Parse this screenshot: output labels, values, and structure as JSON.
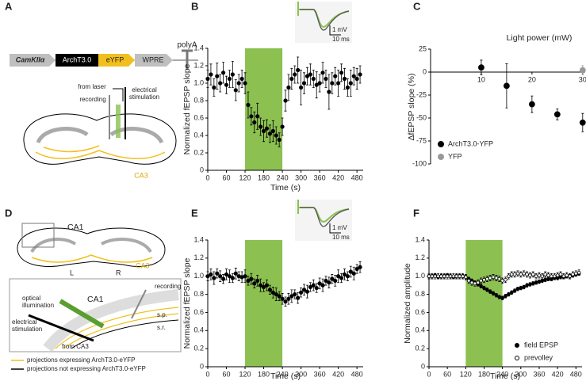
{
  "panel_labels": [
    "A",
    "B",
    "C",
    "D",
    "E",
    "F"
  ],
  "diagram_a": {
    "promoter": "CamKIIα",
    "gene": "ArchT3.0",
    "reporter": "eYFP",
    "element": "WPRE",
    "terminator": "polyA",
    "labels": [
      "from laser",
      "recording",
      "electrical",
      "stimulation",
      "CA3"
    ]
  },
  "diagram_d": {
    "slice_labels": [
      "CA1",
      "L",
      "R",
      "CA3"
    ],
    "inset_labels": [
      "optical",
      "illumination",
      "CA1",
      "recording",
      "s.p.",
      "s.r.",
      "electrical",
      "stimulation",
      "from CA3"
    ],
    "legend": [
      "projections expressing ArchT3.0-eYFP",
      "projections not expressing ArchT3.0-eYFP"
    ]
  },
  "chart_data": [
    {
      "type": "scatter",
      "xlabel": "Time (s)",
      "ylabel": "Normalized fEPSP slope",
      "x": [
        0,
        10,
        20,
        30,
        40,
        50,
        60,
        70,
        80,
        90,
        100,
        110,
        120,
        130,
        140,
        150,
        160,
        170,
        180,
        190,
        200,
        210,
        220,
        230,
        240,
        250,
        260,
        270,
        280,
        290,
        300,
        310,
        320,
        330,
        340,
        350,
        360,
        370,
        380,
        390,
        400,
        410,
        420,
        430,
        440,
        450,
        460,
        470,
        480,
        490
      ],
      "series": [
        {
          "color": "#000000",
          "values": [
            1.05,
            1.1,
            0.95,
            1.08,
            1.0,
            1.12,
            0.98,
            1.05,
            1.1,
            0.92,
            1.0,
            1.05,
            1.0,
            0.75,
            0.62,
            0.55,
            0.62,
            0.5,
            0.45,
            0.48,
            0.42,
            0.45,
            0.4,
            0.35,
            0.5,
            0.8,
            0.95,
            1.05,
            1.1,
            1.15,
            0.95,
            1.0,
            1.08,
            1.1,
            1.05,
            0.98,
            1.0,
            1.12,
            1.05,
            0.9,
            1.0,
            1.08,
            1.0,
            1.12,
            1.05,
            0.95,
            1.0,
            1.08,
            1.05,
            1.1
          ],
          "errors": [
            0.1,
            0.12,
            0.1,
            0.15,
            0.1,
            0.12,
            0.1,
            0.1,
            0.15,
            0.12,
            0.1,
            0.1,
            0.12,
            0.15,
            0.1,
            0.12,
            0.15,
            0.1,
            0.12,
            0.1,
            0.1,
            0.12,
            0.1,
            0.08,
            0.1,
            0.12,
            0.15,
            0.12,
            0.1,
            0.15,
            0.2,
            0.12,
            0.1,
            0.12,
            0.1,
            0.15,
            0.1,
            0.12,
            0.1,
            0.2,
            0.12,
            0.1,
            0.15,
            0.1,
            0.12,
            0.1,
            0.15,
            0.1,
            0.12,
            0.1
          ]
        }
      ],
      "xlim": [
        0,
        500
      ],
      "xticks": [
        0,
        60,
        120,
        180,
        240,
        300,
        360,
        420,
        480
      ],
      "ylim": [
        0,
        1.4
      ],
      "yticks": [
        0,
        0.2,
        0.4,
        0.6,
        0.8,
        {
          "value": 1,
          "label": "1.0"
        },
        1.2,
        1.4
      ],
      "highlight": [
        120,
        240
      ],
      "highlight_color": "#8cc152",
      "scale_labels": [
        "1 mV",
        "10 ms"
      ]
    },
    {
      "type": "scatter",
      "xlabel": "Light power (mW)",
      "ylabel": "ΔfEPSP slope (%)",
      "series": [
        {
          "name": "ArchT3.0-YFP",
          "color": "#000000",
          "x": [
            10,
            15,
            20,
            25,
            30
          ],
          "values": [
            5,
            -15,
            -35,
            -46,
            -55
          ],
          "errors": [
            8,
            24,
            9,
            6,
            10
          ]
        },
        {
          "name": "YFP",
          "color": "#999999",
          "x": [
            30
          ],
          "values": [
            2
          ],
          "errors": [
            5
          ]
        }
      ],
      "xlim": [
        0,
        30.5
      ],
      "xticks": [
        10,
        20,
        30
      ],
      "ylim": [
        -100,
        25
      ],
      "yticks": [
        25,
        0,
        -25,
        -50,
        -75,
        -100
      ],
      "legend": "lower left"
    },
    {
      "type": "scatter",
      "xlabel": "Time (s)",
      "ylabel": "Normalized fEPSP slope",
      "x": [
        0,
        10,
        20,
        30,
        40,
        50,
        60,
        70,
        80,
        90,
        100,
        110,
        120,
        130,
        140,
        150,
        160,
        170,
        180,
        190,
        200,
        210,
        220,
        230,
        240,
        250,
        260,
        270,
        280,
        290,
        300,
        310,
        320,
        330,
        340,
        350,
        360,
        370,
        380,
        390,
        400,
        410,
        420,
        430,
        440,
        450,
        460,
        470,
        480,
        490
      ],
      "series": [
        {
          "color": "#000000",
          "values": [
            1.0,
            1.02,
            0.98,
            1.03,
            1.0,
            0.97,
            1.02,
            1.0,
            0.98,
            1.03,
            1.0,
            0.99,
            1.0,
            0.95,
            0.97,
            0.92,
            0.95,
            0.9,
            0.88,
            0.9,
            0.85,
            0.82,
            0.8,
            0.78,
            0.75,
            0.72,
            0.75,
            0.78,
            0.8,
            0.76,
            0.82,
            0.85,
            0.83,
            0.88,
            0.9,
            0.87,
            0.92,
            0.9,
            0.95,
            0.93,
            0.97,
            0.95,
            1.0,
            0.98,
            1.02,
            1.0,
            1.05,
            1.03,
            1.08,
            1.1
          ],
          "errors": [
            0.05,
            0.06,
            0.07,
            0.05,
            0.06,
            0.05,
            0.06,
            0.07,
            0.05,
            0.06,
            0.05,
            0.06,
            0.07,
            0.05,
            0.06,
            0.05,
            0.06,
            0.07,
            0.05,
            0.06,
            0.05,
            0.06,
            0.07,
            0.05,
            0.06,
            0.05,
            0.06,
            0.07,
            0.05,
            0.06,
            0.05,
            0.06,
            0.07,
            0.05,
            0.06,
            0.05,
            0.06,
            0.07,
            0.05,
            0.06,
            0.05,
            0.06,
            0.07,
            0.05,
            0.06,
            0.05,
            0.06,
            0.07,
            0.05,
            0.06
          ]
        }
      ],
      "xlim": [
        0,
        500
      ],
      "xticks": [
        0,
        60,
        120,
        180,
        240,
        300,
        360,
        420,
        480
      ],
      "ylim": [
        0,
        1.4
      ],
      "yticks": [
        0,
        0.2,
        0.4,
        0.6,
        0.8,
        {
          "value": 1,
          "label": "1.0"
        },
        1.2,
        1.4
      ],
      "highlight": [
        120,
        240
      ],
      "highlight_color": "#8cc152",
      "scale_labels": [
        "1 mV",
        "10 ms"
      ]
    },
    {
      "type": "scatter",
      "xlabel": "Time (s)",
      "ylabel": "Normalized amplitude",
      "x": [
        0,
        10,
        20,
        30,
        40,
        50,
        60,
        70,
        80,
        90,
        100,
        110,
        120,
        130,
        140,
        150,
        160,
        170,
        180,
        190,
        200,
        210,
        220,
        230,
        240,
        250,
        260,
        270,
        280,
        290,
        300,
        310,
        320,
        330,
        340,
        350,
        360,
        370,
        380,
        390,
        400,
        410,
        420,
        430,
        440,
        450,
        460,
        470,
        480,
        490
      ],
      "series": [
        {
          "name": "field EPSP",
          "color": "#000000",
          "marker": "filled",
          "values": [
            1.0,
            1.0,
            1.01,
            0.99,
            1.0,
            1.0,
            1.01,
            1.0,
            0.99,
            1.0,
            1.0,
            1.0,
            0.99,
            0.97,
            0.95,
            0.93,
            0.91,
            0.89,
            0.87,
            0.85,
            0.83,
            0.81,
            0.79,
            0.77,
            0.76,
            0.78,
            0.8,
            0.82,
            0.84,
            0.86,
            0.87,
            0.88,
            0.9,
            0.91,
            0.92,
            0.93,
            0.94,
            0.95,
            0.96,
            0.97,
            0.97,
            0.98,
            0.98,
            0.99,
            0.99,
            1.0,
            1.0,
            1.01,
            1.02,
            1.03
          ],
          "errors": [
            0.02,
            0.02,
            0.02,
            0.02,
            0.02,
            0.02,
            0.02,
            0.02,
            0.02,
            0.02,
            0.02,
            0.02,
            0.02,
            0.02,
            0.02,
            0.02,
            0.02,
            0.02,
            0.02,
            0.02,
            0.02,
            0.02,
            0.02,
            0.02,
            0.02,
            0.02,
            0.02,
            0.02,
            0.02,
            0.02,
            0.02,
            0.02,
            0.02,
            0.02,
            0.02,
            0.02,
            0.02,
            0.02,
            0.02,
            0.02,
            0.02,
            0.02,
            0.02,
            0.02,
            0.02,
            0.02,
            0.02,
            0.02,
            0.02,
            0.02
          ]
        },
        {
          "name": "prevolley",
          "color": "#000000",
          "marker": "open",
          "values": [
            1.0,
            1.0,
            1.0,
            1.0,
            1.0,
            1.0,
            1.0,
            1.0,
            1.0,
            1.0,
            1.0,
            1.0,
            0.99,
            0.95,
            0.93,
            0.92,
            0.93,
            0.95,
            0.96,
            0.97,
            0.98,
            0.99,
            0.98,
            0.97,
            0.95,
            0.96,
            1.0,
            1.02,
            1.02,
            1.03,
            1.02,
            1.03,
            1.02,
            1.01,
            1.02,
            1.0,
            1.01,
            1.0,
            1.02,
            1.01,
            1.0,
            1.0,
            1.01,
            1.02,
            1.0,
            1.01,
            1.0,
            1.02,
            1.03,
            1.04
          ],
          "errors": [
            0.03,
            0.03,
            0.03,
            0.03,
            0.03,
            0.03,
            0.03,
            0.03,
            0.03,
            0.03,
            0.03,
            0.03,
            0.03,
            0.03,
            0.03,
            0.03,
            0.03,
            0.03,
            0.03,
            0.03,
            0.03,
            0.03,
            0.03,
            0.03,
            0.03,
            0.03,
            0.03,
            0.03,
            0.03,
            0.03,
            0.03,
            0.03,
            0.03,
            0.03,
            0.03,
            0.03,
            0.03,
            0.03,
            0.03,
            0.03,
            0.03,
            0.03,
            0.03,
            0.03,
            0.03,
            0.03,
            0.03,
            0.03,
            0.03,
            0.03
          ]
        }
      ],
      "xlim": [
        0,
        500
      ],
      "xticks": [
        0,
        60,
        120,
        180,
        240,
        300,
        360,
        420,
        480
      ],
      "ylim": [
        0,
        1.4
      ],
      "yticks": [
        0,
        0.2,
        0.4,
        0.6,
        0.8,
        {
          "value": 1,
          "label": "1.0"
        },
        1.2,
        1.4
      ],
      "highlight": [
        120,
        240
      ],
      "highlight_color": "#8cc152",
      "legend": "lower right"
    }
  ]
}
